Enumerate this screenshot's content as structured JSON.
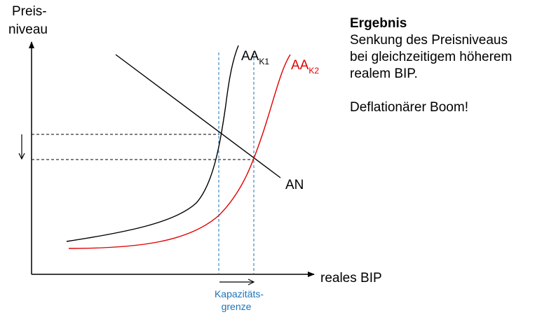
{
  "axes": {
    "y_label_line1": "Preis-",
    "y_label_line2": "niveau",
    "x_label": "reales BIP"
  },
  "curves": {
    "aa1_main": "AA",
    "aa1_sub": "K1",
    "aa2_main": "AA",
    "aa2_sub": "K2",
    "an": "AN"
  },
  "capacity": {
    "line1": "Kapazitäts-",
    "line2": "grenze"
  },
  "result": {
    "title": "Ergebnis",
    "line1": "Senkung des Preisniveaus",
    "line2": "bei gleichzeitigem höherem",
    "line3": "realem BIP.",
    "line4": "Deflationärer Boom!"
  },
  "colors": {
    "black": "#000000",
    "red": "#e00000",
    "blue": "#1a73b8"
  }
}
